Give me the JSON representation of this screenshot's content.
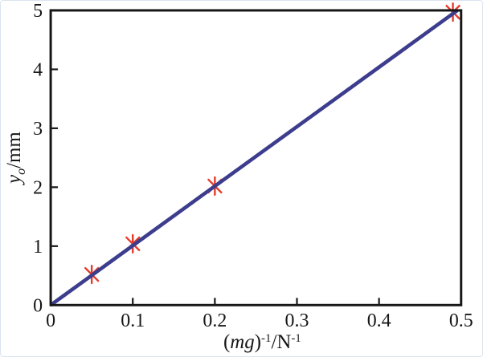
{
  "figure": {
    "background": "#ffffff",
    "frame_border_color": "#dbe5ef",
    "aria_label": "Scatter plot of y_o in mm versus (mg)^-1 in N^-1 with linear fit through the origin"
  },
  "chart_data": {
    "type": "scatter",
    "title": "",
    "xlabel_text": "(mg)^-1/N^-1",
    "xlabel_parts": [
      {
        "text": "(",
        "style": "normal"
      },
      {
        "text": "mg",
        "style": "italic"
      },
      {
        "text": ")",
        "style": "normal"
      },
      {
        "text": "-1",
        "style": "sup"
      },
      {
        "text": "/N",
        "style": "normal"
      },
      {
        "text": "-1",
        "style": "sup"
      }
    ],
    "ylabel_text": "y_o/mm",
    "ylabel_parts": [
      {
        "text": "y",
        "style": "italic"
      },
      {
        "text": "o",
        "style": "sub-italic"
      },
      {
        "text": "/mm",
        "style": "normal"
      }
    ],
    "xlim": [
      0,
      0.5
    ],
    "ylim": [
      0,
      5
    ],
    "xticks": [
      0,
      0.1,
      0.2,
      0.3,
      0.4,
      0.5
    ],
    "xtick_labels": [
      "0",
      "0.1",
      "0.2",
      "0.3",
      "0.4",
      "0.5"
    ],
    "yticks": [
      0,
      1,
      2,
      3,
      4,
      5
    ],
    "ytick_labels": [
      "0",
      "1",
      "2",
      "3",
      "4",
      "5"
    ],
    "grid": false,
    "legend": null,
    "axis_color": "#161616",
    "series": [
      {
        "name": "measured-points",
        "type": "scatter",
        "marker": "asterisk",
        "color": "#e43b2c",
        "x": [
          0.05,
          0.1,
          0.2,
          0.49
        ],
        "y": [
          0.52,
          1.04,
          2.02,
          4.97
        ]
      },
      {
        "name": "linear-fit-line",
        "type": "line",
        "color": "#3d3d8e",
        "x": [
          0,
          0.4955
        ],
        "y": [
          0,
          5.0
        ]
      }
    ]
  }
}
